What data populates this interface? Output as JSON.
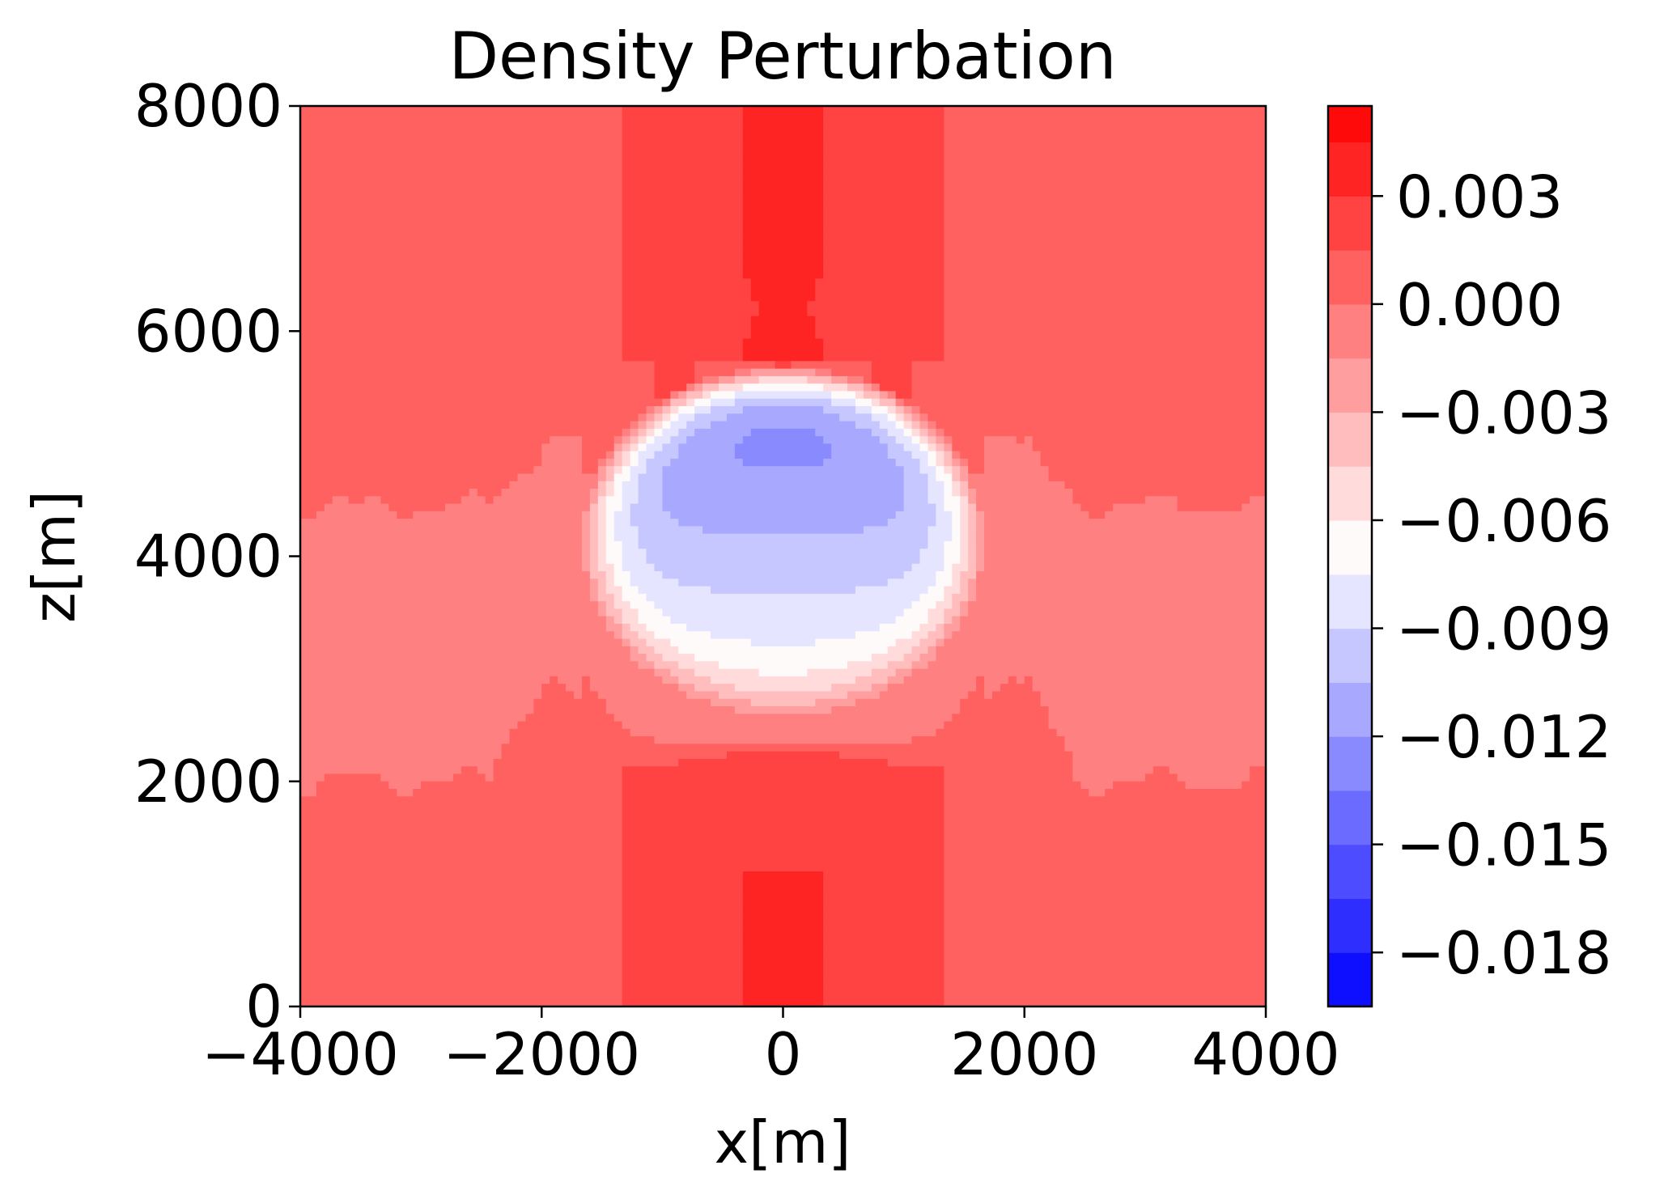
{
  "chart_data": {
    "type": "heatmap",
    "subtype": "filled-contour",
    "title": "Density Perturbation",
    "xlabel": "x[m]",
    "ylabel": "z[m]",
    "xlim": [
      -4000,
      4000
    ],
    "ylim": [
      0,
      8000
    ],
    "x_ticks": [
      -4000,
      -2000,
      0,
      2000,
      4000
    ],
    "x_tick_labels": [
      "−4000",
      "−2000",
      "0",
      "2000",
      "4000"
    ],
    "y_ticks": [
      0,
      2000,
      4000,
      6000,
      8000
    ],
    "y_tick_labels": [
      "0",
      "2000",
      "4000",
      "6000",
      "8000"
    ],
    "colormap": "bwr",
    "colorbar": {
      "vmin": -0.0195,
      "vmax": 0.0055,
      "levels": [
        -0.0195,
        -0.018,
        -0.0165,
        -0.015,
        -0.0135,
        -0.012,
        -0.0105,
        -0.009,
        -0.0075,
        -0.006,
        -0.0045,
        -0.003,
        -0.0015,
        0.0,
        0.0015,
        0.003,
        0.0045,
        0.0055
      ],
      "ticks": [
        0.003,
        0.0,
        -0.003,
        -0.006,
        -0.009,
        -0.012,
        -0.015,
        -0.018
      ],
      "tick_labels": [
        "0.003",
        "0.000",
        "−0.003",
        "−0.006",
        "−0.009",
        "−0.012",
        "−0.015",
        "−0.018"
      ]
    },
    "background_value": 0.0008,
    "features": [
      {
        "kind": "central-column-lower",
        "x_halfwidths": [
          1350,
          1050,
          350
        ],
        "z_top": [
          2100,
          1650,
          1200
        ],
        "values": [
          0.0015,
          0.0025,
          0.004
        ]
      },
      {
        "kind": "central-column-upper",
        "x_halfwidths": [
          1350,
          1050,
          350
        ],
        "z_bottom_min": 5700,
        "values": [
          0.0015,
          0.0025,
          0.004
        ]
      },
      {
        "kind": "negative-band",
        "z_range": [
          2000,
          4600
        ],
        "value": -0.0003
      },
      {
        "kind": "bubble",
        "center": [
          0,
          4100
        ],
        "radius": 1700,
        "min_value": -0.0135,
        "min_at": [
          0,
          5300
        ]
      }
    ],
    "grid": false,
    "legend": "none"
  }
}
